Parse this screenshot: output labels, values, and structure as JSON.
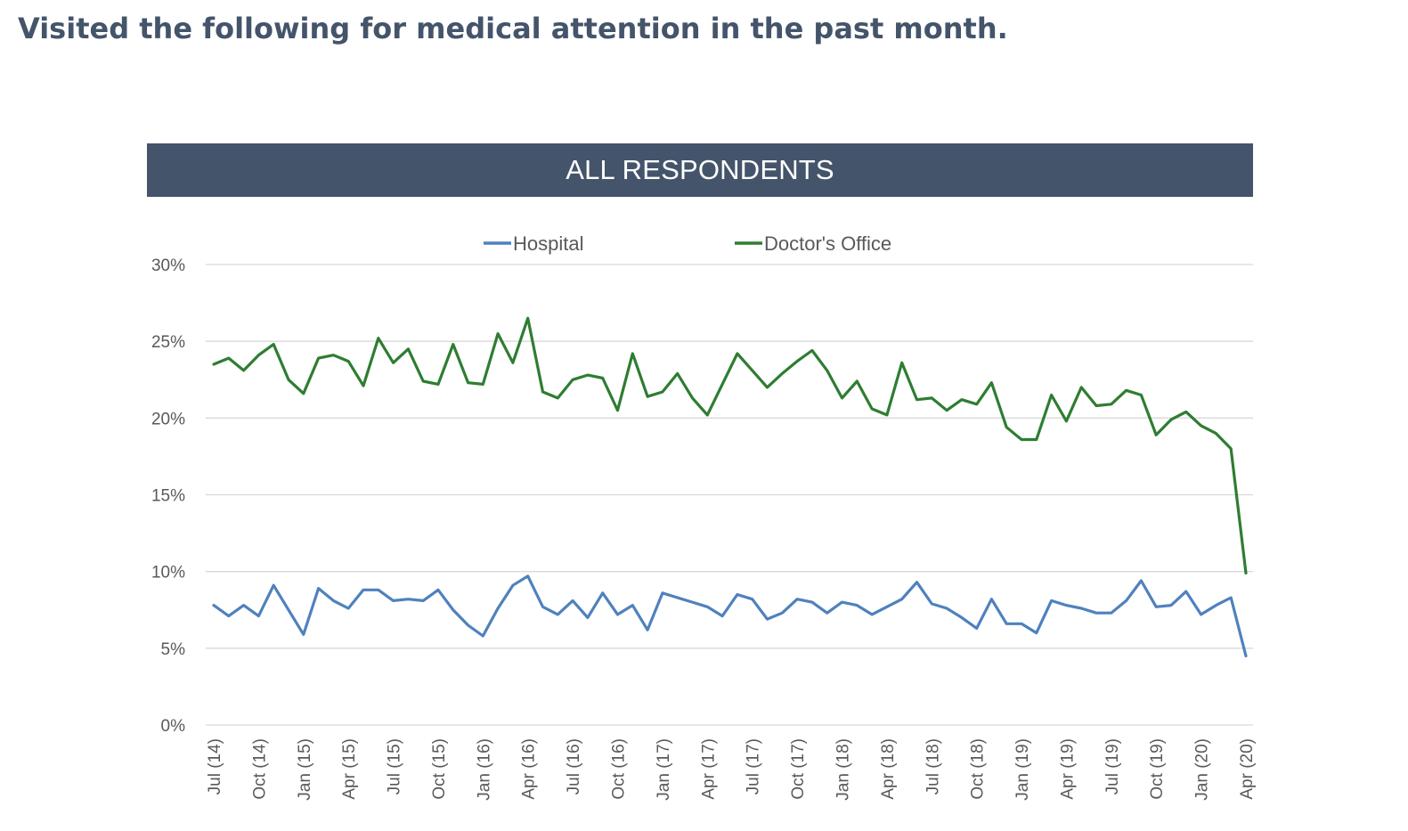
{
  "page": {
    "title": "Visited the following for medical attention in the past month."
  },
  "banner": {
    "label": "ALL RESPONDENTS"
  },
  "colors": {
    "banner_bg": "#44546a",
    "title_text": "#44546a",
    "hospital": "#4f81bd",
    "doctors_office": "#2e7d32",
    "gridline": "#d9d9d9",
    "axis_text": "#595959"
  },
  "chart_data": {
    "type": "line",
    "title": "",
    "xlabel": "",
    "ylabel": "",
    "ylim": [
      0,
      30
    ],
    "y_ticks": [
      "0%",
      "5%",
      "10%",
      "15%",
      "20%",
      "25%",
      "30%"
    ],
    "y_tick_values": [
      0,
      5,
      10,
      15,
      20,
      25,
      30
    ],
    "grid": "horizontal",
    "legend_position": "top-center",
    "x_tick_labels": [
      "Jul (14)",
      "Oct (14)",
      "Jan (15)",
      "Apr (15)",
      "Jul (15)",
      "Oct (15)",
      "Jan (16)",
      "Apr (16)",
      "Jul (16)",
      "Oct (16)",
      "Jan (17)",
      "Apr (17)",
      "Jul (17)",
      "Oct (17)",
      "Jan (18)",
      "Apr (18)",
      "Jul (18)",
      "Oct (18)",
      "Jan (19)",
      "Apr (19)",
      "Jul (19)",
      "Oct (19)",
      "Jan (20)",
      "Apr (20)"
    ],
    "x": [
      "Jul (14)",
      "Aug (14)",
      "Sep (14)",
      "Oct (14)",
      "Nov (14)",
      "Dec (14)",
      "Jan (15)",
      "Feb (15)",
      "Mar (15)",
      "Apr (15)",
      "May (15)",
      "Jun (15)",
      "Jul (15)",
      "Aug (15)",
      "Sep (15)",
      "Oct (15)",
      "Nov (15)",
      "Dec (15)",
      "Jan (16)",
      "Feb (16)",
      "Mar (16)",
      "Apr (16)",
      "May (16)",
      "Jun (16)",
      "Jul (16)",
      "Aug (16)",
      "Sep (16)",
      "Oct (16)",
      "Nov (16)",
      "Dec (16)",
      "Jan (17)",
      "Feb (17)",
      "Mar (17)",
      "Apr (17)",
      "May (17)",
      "Jun (17)",
      "Jul (17)",
      "Aug (17)",
      "Sep (17)",
      "Oct (17)",
      "Nov (17)",
      "Dec (17)",
      "Jan (18)",
      "Feb (18)",
      "Mar (18)",
      "Apr (18)",
      "May (18)",
      "Jun (18)",
      "Jul (18)",
      "Aug (18)",
      "Sep (18)",
      "Oct (18)",
      "Nov (18)",
      "Dec (18)",
      "Jan (19)",
      "Feb (19)",
      "Mar (19)",
      "Apr (19)",
      "May (19)",
      "Jun (19)",
      "Jul (19)",
      "Aug (19)",
      "Sep (19)",
      "Oct (19)",
      "Nov (19)",
      "Dec (19)",
      "Jan (20)",
      "Feb (20)",
      "Mar (20)",
      "Apr (20)"
    ],
    "series": [
      {
        "name": "Hospital",
        "color": "#4f81bd",
        "values": [
          7.8,
          7.1,
          7.8,
          7.1,
          9.1,
          7.5,
          5.9,
          8.9,
          8.1,
          7.6,
          8.8,
          8.8,
          8.1,
          8.2,
          8.1,
          8.8,
          7.5,
          6.5,
          5.8,
          7.6,
          9.1,
          9.7,
          7.7,
          7.2,
          8.1,
          7.0,
          8.6,
          7.2,
          7.8,
          6.2,
          8.6,
          8.3,
          8.0,
          7.7,
          7.1,
          8.5,
          8.2,
          6.9,
          7.3,
          8.2,
          8.0,
          7.3,
          8.0,
          7.8,
          7.2,
          7.7,
          8.2,
          9.3,
          7.9,
          7.6,
          7.0,
          6.3,
          8.2,
          6.6,
          6.6,
          6.0,
          8.1,
          7.8,
          7.6,
          7.3,
          7.3,
          8.1,
          9.4,
          7.7,
          7.8,
          8.7,
          7.2,
          7.8,
          8.3,
          4.5
        ]
      },
      {
        "name": "Doctor's Office",
        "color": "#2e7d32",
        "values": [
          23.5,
          23.9,
          23.1,
          24.1,
          24.8,
          22.5,
          21.6,
          23.9,
          24.1,
          23.7,
          22.1,
          25.2,
          23.6,
          24.5,
          22.4,
          22.2,
          24.8,
          22.3,
          22.2,
          25.5,
          23.6,
          26.5,
          21.7,
          21.3,
          22.5,
          22.8,
          22.6,
          20.5,
          24.2,
          21.4,
          21.7,
          22.9,
          21.3,
          20.2,
          22.2,
          24.2,
          23.1,
          22.0,
          22.9,
          23.7,
          24.4,
          23.1,
          21.3,
          22.4,
          20.6,
          20.2,
          23.6,
          21.2,
          21.3,
          20.5,
          21.2,
          20.9,
          22.3,
          19.4,
          18.6,
          18.6,
          21.5,
          19.8,
          22.0,
          20.8,
          20.9,
          21.8,
          21.5,
          18.9,
          19.9,
          20.4,
          19.5,
          19.0,
          18.0,
          9.9
        ]
      }
    ]
  }
}
